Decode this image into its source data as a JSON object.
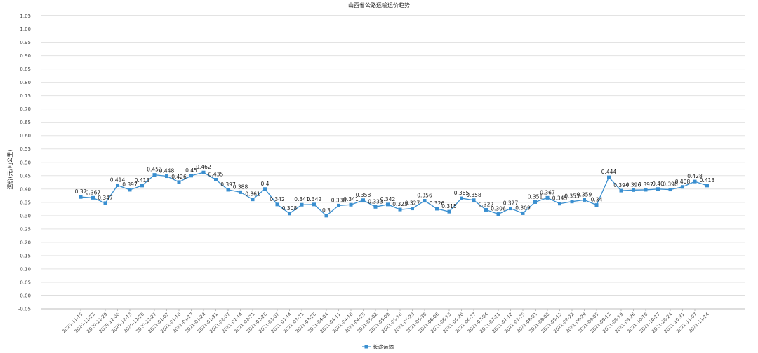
{
  "chart_data": {
    "type": "line",
    "title": "山西省公路运输运价趋势",
    "ylabel": "运价(元/吨公里)",
    "xlabel": "",
    "ylim": [
      -0.05,
      1.05
    ],
    "ytick_step": 0.05,
    "grid": true,
    "legend_position": "bottom",
    "color": "#3a8fd0",
    "categories": [
      "2020-11-15",
      "2020-11-22",
      "2020-11-29",
      "2020-12-06",
      "2020-12-13",
      "2020-12-20",
      "2020-12-27",
      "2021-01-03",
      "2021-01-10",
      "2021-01-17",
      "2021-01-24",
      "2021-01-31",
      "2021-02-07",
      "2021-02-14",
      "2021-02-21",
      "2021-02-28",
      "2021-03-07",
      "2021-03-14",
      "2021-03-21",
      "2021-03-28",
      "2021-04-04",
      "2021-04-11",
      "2021-04-18",
      "2021-04-25",
      "2021-05-02",
      "2021-05-09",
      "2021-05-16",
      "2021-05-23",
      "2021-05-30",
      "2021-06-06",
      "2021-06-13",
      "2021-06-20",
      "2021-06-27",
      "2021-07-04",
      "2021-07-11",
      "2021-07-18",
      "2021-07-25",
      "2021-08-01",
      "2021-08-08",
      "2021-08-15",
      "2021-08-22",
      "2021-08-29",
      "2021-09-05",
      "2021-09-12",
      "2021-09-19",
      "2021-09-26",
      "2021-10-10",
      "2021-10-17",
      "2021-10-24",
      "2021-10-31",
      "2021-11-07",
      "2021-11-14"
    ],
    "series": [
      {
        "name": "长途运输",
        "values": [
          0.37,
          0.367,
          0.347,
          0.414,
          0.397,
          0.413,
          0.453,
          0.448,
          0.426,
          0.45,
          0.462,
          0.435,
          0.397,
          0.388,
          0.361,
          0.4,
          0.342,
          0.308,
          0.341,
          0.342,
          0.3,
          0.338,
          0.341,
          0.358,
          0.333,
          0.342,
          0.323,
          0.327,
          0.356,
          0.326,
          0.315,
          0.365,
          0.358,
          0.322,
          0.306,
          0.327,
          0.309,
          0.351,
          0.367,
          0.345,
          0.353,
          0.359,
          0.34,
          0.444,
          0.394,
          0.396,
          0.397,
          0.4,
          0.398,
          0.408,
          0.428,
          0.413
        ],
        "labels": [
          "0.37",
          "0.367",
          "0.347",
          "0.414",
          "0.397",
          "0.413",
          "0.453",
          "0.448",
          "0.426",
          "0.45",
          "0.462",
          "0.435",
          "0.397",
          "0.388",
          "0.361",
          "0.4",
          "0.342",
          "0.308",
          "0.341",
          "0.342",
          "0.3",
          "0.338",
          "0.341",
          "0.358",
          "0.333",
          "0.342",
          "0.323",
          "0.327",
          "0.356",
          "0.326",
          "0.315",
          "0.365",
          "0.358",
          "0.322",
          "0.306",
          "0.327",
          "0.309",
          "0.351",
          "0.367",
          "0.345",
          "0.353",
          "0.359",
          "0.34",
          "0.444",
          "0.394",
          "0.396",
          "0.397",
          "0.40",
          "0.398",
          "0.408",
          "0.428",
          "0.413"
        ]
      }
    ]
  }
}
